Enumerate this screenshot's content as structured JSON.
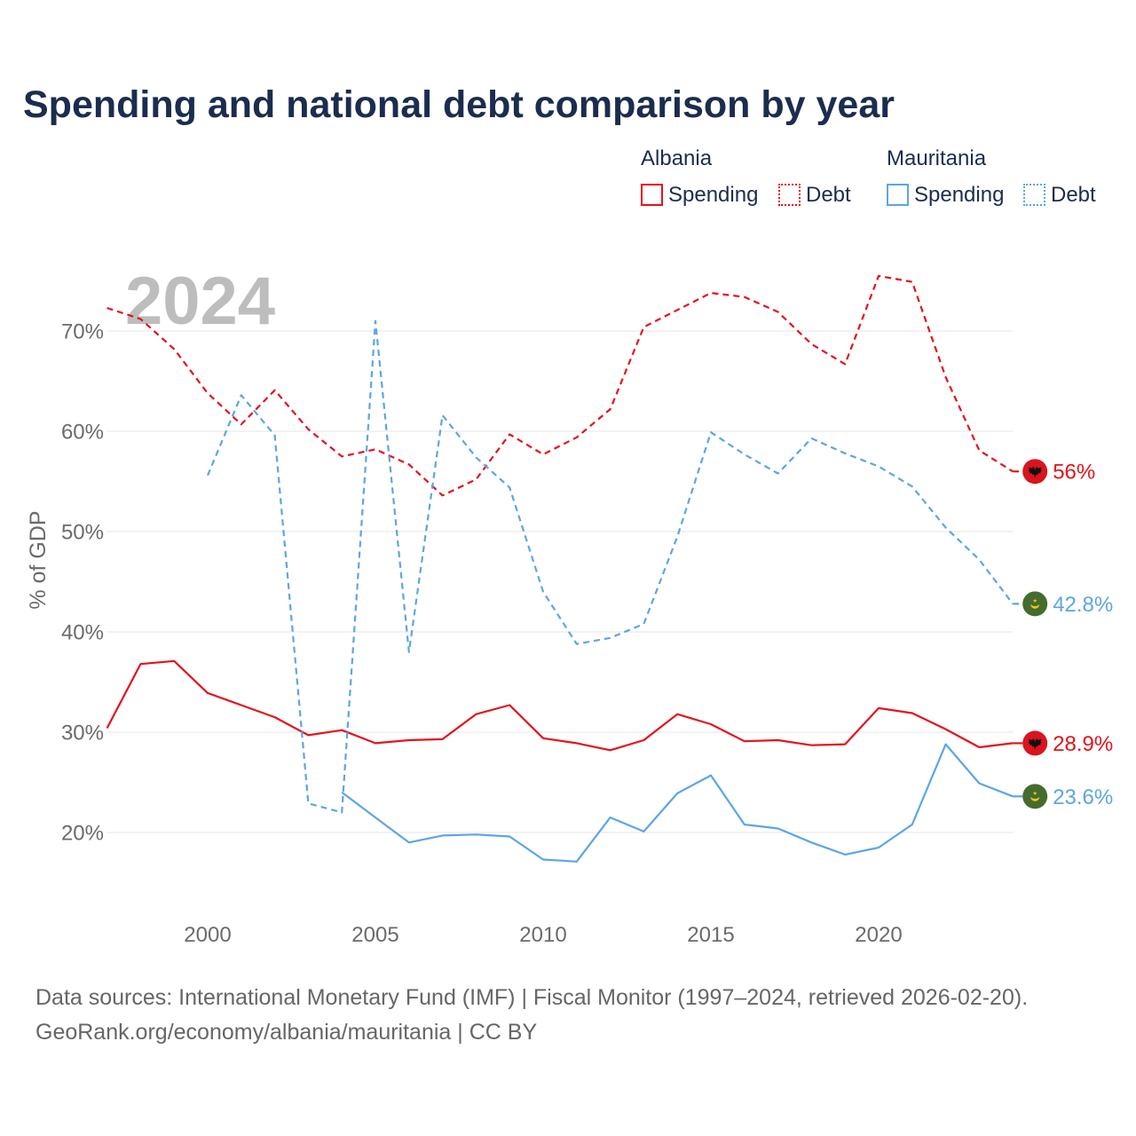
{
  "chart_data": {
    "type": "line",
    "title": "Spending and national debt comparison by year",
    "year_indicator": "2024",
    "ylabel": "% of GDP",
    "xlim": [
      1997,
      2024
    ],
    "ylim": [
      12,
      77
    ],
    "xticks": [
      2000,
      2005,
      2010,
      2015,
      2020
    ],
    "yticks": [
      20,
      30,
      40,
      50,
      60,
      70
    ],
    "ytick_labels": [
      "20%",
      "30%",
      "40%",
      "50%",
      "60%",
      "70%"
    ],
    "grid": true,
    "groups": [
      {
        "label": "Albania",
        "color": "#e5121b",
        "flag_icon": "albania-flag-icon",
        "series": [
          {
            "name": "Spending",
            "dashed": false,
            "x": [
              1997,
              1998,
              1999,
              2000,
              2001,
              2002,
              2003,
              2004,
              2005,
              2006,
              2007,
              2008,
              2009,
              2010,
              2011,
              2012,
              2013,
              2014,
              2015,
              2016,
              2017,
              2018,
              2019,
              2020,
              2021,
              2022,
              2023,
              2024
            ],
            "y": [
              30.4,
              36.8,
              37.1,
              33.9,
              32.7,
              31.5,
              29.7,
              30.2,
              28.9,
              29.2,
              29.3,
              31.8,
              32.7,
              29.4,
              28.9,
              28.2,
              29.2,
              31.8,
              30.8,
              29.1,
              29.2,
              28.7,
              28.8,
              32.4,
              31.9,
              30.3,
              28.5,
              28.9
            ],
            "end_label": "28.9%"
          },
          {
            "name": "Debt",
            "dashed": true,
            "x": [
              1997,
              1998,
              1999,
              2000,
              2001,
              2002,
              2003,
              2004,
              2005,
              2006,
              2007,
              2008,
              2009,
              2010,
              2011,
              2012,
              2013,
              2014,
              2015,
              2016,
              2017,
              2018,
              2019,
              2020,
              2021,
              2022,
              2023,
              2024
            ],
            "y": [
              72.3,
              71.2,
              68.2,
              63.8,
              60.7,
              64.1,
              60.2,
              57.5,
              58.2,
              56.7,
              53.6,
              55.2,
              59.7,
              57.7,
              59.4,
              62.2,
              70.4,
              72.1,
              73.8,
              73.4,
              71.9,
              68.7,
              66.7,
              75.5,
              74.9,
              65.4,
              58.1,
              56.0
            ],
            "end_label": "56%"
          }
        ]
      },
      {
        "label": "Mauritania",
        "color": "#5ca5e6",
        "flag_icon": "mauritania-flag-icon",
        "series": [
          {
            "name": "Spending",
            "dashed": false,
            "x": [
              2004,
              2005,
              2006,
              2007,
              2008,
              2009,
              2010,
              2011,
              2012,
              2013,
              2014,
              2015,
              2016,
              2017,
              2018,
              2019,
              2020,
              2021,
              2022,
              2023,
              2024
            ],
            "y": [
              24.0,
              21.5,
              19.0,
              19.7,
              19.8,
              19.6,
              17.3,
              17.1,
              21.5,
              20.1,
              23.9,
              25.7,
              20.8,
              20.4,
              19.0,
              17.8,
              18.5,
              20.8,
              28.8,
              24.9,
              23.6
            ],
            "end_label": "23.6%"
          },
          {
            "name": "Debt",
            "dashed": true,
            "x": [
              2000,
              2001,
              2002,
              2003,
              2004,
              2005,
              2006,
              2007,
              2008,
              2009,
              2010,
              2011,
              2012,
              2013,
              2014,
              2015,
              2016,
              2017,
              2018,
              2019,
              2020,
              2021,
              2022,
              2023,
              2024
            ],
            "y": [
              55.6,
              63.6,
              59.6,
              22.9,
              22.0,
              71.0,
              38.0,
              61.6,
              57.4,
              54.4,
              44.0,
              38.8,
              39.4,
              40.8,
              49.5,
              59.9,
              57.7,
              55.8,
              59.3,
              57.8,
              56.5,
              54.5,
              50.4,
              47.2,
              42.8
            ],
            "end_label": "42.8%"
          }
        ]
      }
    ]
  },
  "footer": {
    "source": "Data sources: International Monetary Fund (IMF) | Fiscal Monitor (1997–2024, retrieved 2026-02-20).",
    "attribution": "GeoRank.org/economy/albania/mauritania | CC BY"
  }
}
